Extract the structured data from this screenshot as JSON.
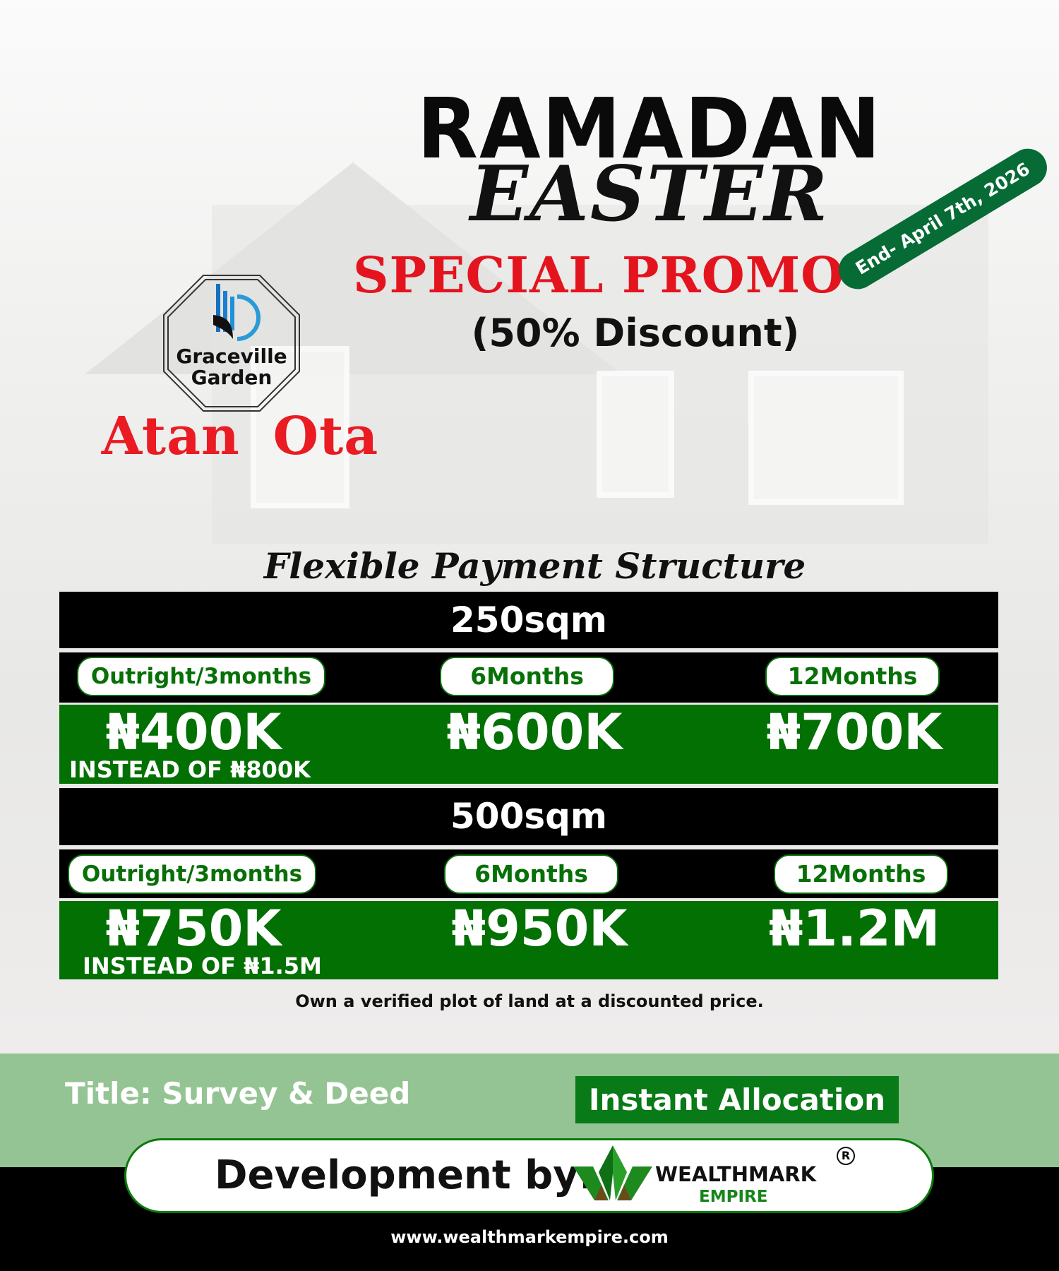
{
  "headline": {
    "line1": "RAMADAN",
    "line2": "EASTER",
    "line3": "SPECIAL PROMO",
    "discount": "(50% Discount)"
  },
  "ribbon": "End- April 7th, 2026",
  "logo": {
    "name_line1": "Graceville",
    "name_line2": "Garden"
  },
  "location": "Atan  Ota",
  "section_title": "Flexible Payment Structure",
  "plans": [
    {
      "size": "250sqm",
      "options": [
        {
          "label": "Outright/3months",
          "price": "₦400K",
          "note": "INSTEAD OF ₦800K"
        },
        {
          "label": "6Months",
          "price": "₦600K"
        },
        {
          "label": "12Months",
          "price": "₦700K"
        }
      ]
    },
    {
      "size": "500sqm",
      "options": [
        {
          "label": "Outright/3months",
          "price": "₦750K",
          "note": "INSTEAD OF ₦1.5M"
        },
        {
          "label": "6Months",
          "price": "₦950K"
        },
        {
          "label": "12Months",
          "price": "₦1.2M"
        }
      ]
    }
  ],
  "caption": "Own a verified plot of land at a discounted price.",
  "title_text": "Title: Survey & Deed",
  "allocation": "Instant Allocation",
  "developer": {
    "label": "Development by:",
    "brand": "WEALTHMARK",
    "brand_sub": "EMPIRE",
    "reg": "R"
  },
  "website": "www.wealthmarkempire.com",
  "colors": {
    "green": "#037003",
    "red": "#e3141e",
    "band": "#94c493",
    "ribbon": "#066b35"
  }
}
